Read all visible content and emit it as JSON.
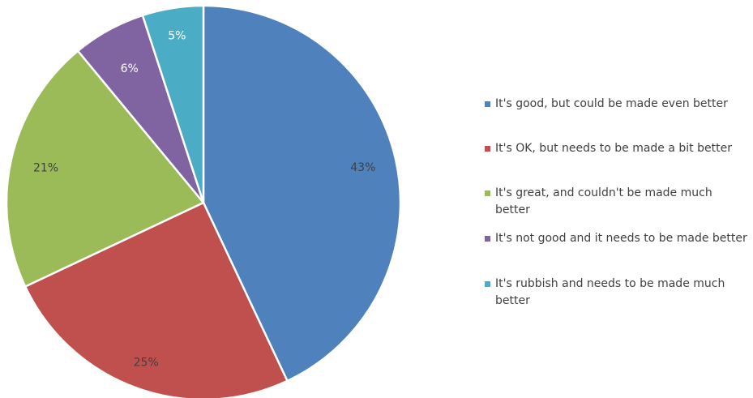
{
  "chart_data": {
    "type": "pie",
    "slices": [
      {
        "label": "It's good, but could be made even better",
        "value": 43,
        "data_label": "43%",
        "color": "#4F81BD"
      },
      {
        "label": "It's OK, but needs to be made a bit better",
        "value": 25,
        "data_label": "25%",
        "color": "#C0504D"
      },
      {
        "label": "It's great, and couldn't be made much better",
        "value": 21,
        "data_label": "21%",
        "color": "#9BBB59"
      },
      {
        "label": "It's not good and it needs to be made better",
        "value": 6,
        "data_label": "6%",
        "color": "#8064A2"
      },
      {
        "label": "It's rubbish and needs to be made much better",
        "value": 5,
        "data_label": "5%",
        "color": "#4BACC6"
      }
    ],
    "legend_position": "right",
    "start_angle_deg": 0,
    "direction": "clockwise"
  }
}
